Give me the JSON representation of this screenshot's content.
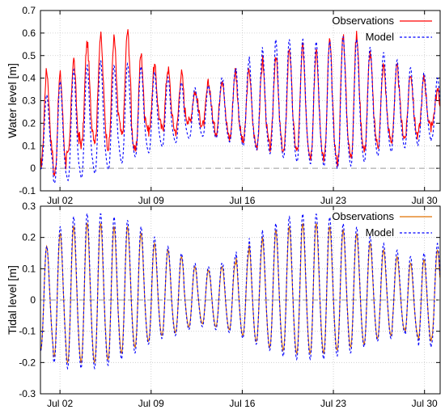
{
  "chart_data": [
    {
      "type": "line",
      "ylabel": "Water level [m]",
      "xlabel": "",
      "ylim": [
        -0.1,
        0.7
      ],
      "y_ticks": [
        "-0.1",
        "0",
        "0.1",
        "0.2",
        "0.3",
        "0.4",
        "0.5",
        "0.6",
        "0.7"
      ],
      "x_ticks": [
        "Jul 02",
        "Jul 09",
        "Jul 16",
        "Jul 23",
        "Jul 30"
      ],
      "xlim_days": [
        0.5,
        31.2
      ],
      "grid": true,
      "zero_line": true,
      "legend_position": "top-right",
      "x_days": [
        1,
        2,
        3,
        4,
        5,
        6,
        7,
        8,
        9,
        10,
        11,
        12,
        13,
        14,
        15,
        16,
        17,
        18,
        19,
        20,
        21,
        22,
        23,
        24,
        25,
        26,
        27,
        28,
        29,
        30,
        31
      ],
      "series": [
        {
          "name": "Observations",
          "color": "#ff0000",
          "style": "solid",
          "peaks": [
            0.4,
            0.38,
            0.45,
            0.52,
            0.55,
            0.54,
            0.57,
            0.47,
            0.43,
            0.42,
            0.4,
            0.33,
            0.36,
            0.38,
            0.41,
            0.4,
            0.42,
            0.46,
            0.47,
            0.5,
            0.5,
            0.48,
            0.52,
            0.55,
            0.55,
            0.48,
            0.43,
            0.42,
            0.4,
            0.38,
            0.33
          ],
          "troughs": [
            0.0,
            -0.05,
            0.03,
            0.08,
            0.1,
            0.07,
            0.12,
            0.05,
            0.15,
            0.16,
            0.15,
            0.2,
            0.18,
            0.15,
            0.12,
            0.1,
            0.08,
            0.07,
            0.05,
            0.05,
            0.03,
            0.02,
            0.0,
            0.02,
            0.05,
            0.08,
            0.1,
            0.12,
            0.12,
            0.15,
            0.2
          ]
        },
        {
          "name": "Model",
          "color": "#0000ff",
          "style": "dashed",
          "peaks": [
            0.3,
            0.35,
            0.4,
            0.42,
            0.44,
            0.42,
            0.43,
            0.42,
            0.4,
            0.38,
            0.36,
            0.34,
            0.35,
            0.38,
            0.41,
            0.44,
            0.47,
            0.5,
            0.53,
            0.53,
            0.53,
            0.52,
            0.52,
            0.54,
            0.53,
            0.5,
            0.48,
            0.45,
            0.42,
            0.4,
            0.38
          ],
          "troughs": [
            -0.02,
            -0.09,
            -0.08,
            -0.07,
            -0.05,
            -0.03,
            0.0,
            0.03,
            0.05,
            0.08,
            0.1,
            0.12,
            0.13,
            0.12,
            0.1,
            0.08,
            0.06,
            0.04,
            0.02,
            0.0,
            -0.01,
            -0.02,
            -0.03,
            -0.02,
            0.0,
            0.03,
            0.05,
            0.07,
            0.08,
            0.1,
            0.12
          ]
        }
      ]
    },
    {
      "type": "line",
      "ylabel": "Tidal level [m]",
      "xlabel": "",
      "ylim": [
        -0.3,
        0.3
      ],
      "y_ticks": [
        "-0.3",
        "-0.2",
        "-0.1",
        "0",
        "0.1",
        "0.2",
        "0.3"
      ],
      "x_ticks": [
        "Jul 02",
        "Jul 09",
        "Jul 16",
        "Jul 23",
        "Jul 30"
      ],
      "xlim_days": [
        0.5,
        31.2
      ],
      "grid": true,
      "zero_line": true,
      "legend_position": "top-right",
      "x_days": [
        1,
        2,
        3,
        4,
        5,
        6,
        7,
        8,
        9,
        10,
        11,
        12,
        13,
        14,
        15,
        16,
        17,
        18,
        19,
        20,
        21,
        22,
        23,
        24,
        25,
        26,
        27,
        28,
        29,
        30,
        31
      ],
      "series": [
        {
          "name": "Observations",
          "color": "#e07000",
          "style": "solid",
          "peaks": [
            0.16,
            0.2,
            0.22,
            0.23,
            0.23,
            0.22,
            0.22,
            0.2,
            0.17,
            0.15,
            0.13,
            0.1,
            0.09,
            0.1,
            0.11,
            0.14,
            0.17,
            0.19,
            0.21,
            0.22,
            0.23,
            0.23,
            0.22,
            0.21,
            0.2,
            0.17,
            0.15,
            0.13,
            0.11,
            0.12,
            0.15
          ],
          "troughs": [
            -0.17,
            -0.19,
            -0.21,
            -0.21,
            -0.21,
            -0.2,
            -0.18,
            -0.16,
            -0.14,
            -0.12,
            -0.11,
            -0.09,
            -0.08,
            -0.09,
            -0.1,
            -0.12,
            -0.14,
            -0.16,
            -0.17,
            -0.18,
            -0.18,
            -0.18,
            -0.17,
            -0.16,
            -0.15,
            -0.13,
            -0.12,
            -0.1,
            -0.12,
            -0.14,
            -0.13
          ]
        },
        {
          "name": "Model",
          "color": "#0000ff",
          "style": "dashed",
          "peaks": [
            0.16,
            0.22,
            0.25,
            0.26,
            0.26,
            0.25,
            0.24,
            0.22,
            0.19,
            0.16,
            0.14,
            0.11,
            0.1,
            0.11,
            0.13,
            0.16,
            0.19,
            0.21,
            0.23,
            0.25,
            0.26,
            0.26,
            0.25,
            0.23,
            0.22,
            0.19,
            0.17,
            0.15,
            0.13,
            0.14,
            0.17
          ],
          "troughs": [
            -0.17,
            -0.21,
            -0.23,
            -0.23,
            -0.23,
            -0.22,
            -0.2,
            -0.18,
            -0.15,
            -0.13,
            -0.12,
            -0.1,
            -0.09,
            -0.1,
            -0.11,
            -0.13,
            -0.15,
            -0.17,
            -0.19,
            -0.2,
            -0.2,
            -0.2,
            -0.19,
            -0.18,
            -0.16,
            -0.14,
            -0.13,
            -0.11,
            -0.13,
            -0.16,
            -0.15
          ]
        }
      ]
    }
  ]
}
